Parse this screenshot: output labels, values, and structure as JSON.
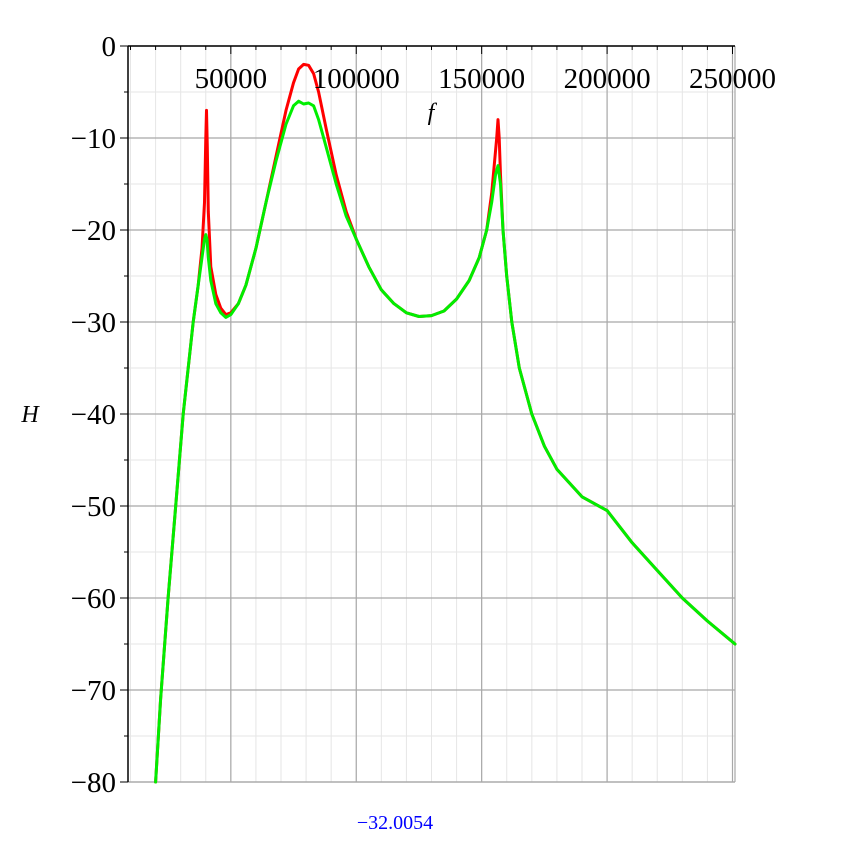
{
  "chart_data": {
    "type": "line",
    "xlabel": "f",
    "ylabel": "H",
    "xlim": [
      9000,
      251000
    ],
    "ylim": [
      -80,
      0
    ],
    "x_ticks": [
      50000,
      100000,
      150000,
      200000,
      250000
    ],
    "x_tick_labels": [
      "50000",
      "100000",
      "150000",
      "200000",
      "250000"
    ],
    "y_ticks": [
      0,
      -10,
      -20,
      -30,
      -40,
      -50,
      -60,
      -70,
      -80
    ],
    "y_tick_labels": [
      "0",
      "−10",
      "−20",
      "−30",
      "−40",
      "−50",
      "−60",
      "−70",
      "−80"
    ],
    "x_axis_position": "top",
    "grid": true,
    "legend": "none",
    "series": [
      {
        "color": "#ff0000",
        "points": [
          [
            20000,
            -80
          ],
          [
            22000,
            -71
          ],
          [
            25000,
            -60
          ],
          [
            28000,
            -50
          ],
          [
            31000,
            -40
          ],
          [
            33000,
            -35
          ],
          [
            35000,
            -30
          ],
          [
            37000,
            -26
          ],
          [
            38500,
            -22
          ],
          [
            39500,
            -17
          ],
          [
            40000,
            -10
          ],
          [
            40300,
            -7
          ],
          [
            40600,
            -11
          ],
          [
            41000,
            -18
          ],
          [
            42000,
            -24
          ],
          [
            44000,
            -27
          ],
          [
            46000,
            -28.5
          ],
          [
            48000,
            -29.2
          ],
          [
            50000,
            -29
          ],
          [
            53000,
            -28
          ],
          [
            56000,
            -26
          ],
          [
            60000,
            -22
          ],
          [
            64000,
            -17
          ],
          [
            68000,
            -12
          ],
          [
            72000,
            -7
          ],
          [
            75000,
            -4
          ],
          [
            77000,
            -2.5
          ],
          [
            79000,
            -2
          ],
          [
            81000,
            -2.1
          ],
          [
            83000,
            -3
          ],
          [
            85000,
            -5
          ],
          [
            88000,
            -9
          ],
          [
            92000,
            -14
          ],
          [
            96000,
            -18
          ],
          [
            100000,
            -21
          ],
          [
            105000,
            -24
          ],
          [
            110000,
            -26.5
          ],
          [
            115000,
            -28
          ],
          [
            120000,
            -29
          ],
          [
            125000,
            -29.4
          ],
          [
            130000,
            -29.3
          ],
          [
            135000,
            -28.8
          ],
          [
            140000,
            -27.5
          ],
          [
            145000,
            -25.5
          ],
          [
            149000,
            -23
          ],
          [
            152000,
            -20
          ],
          [
            154000,
            -16
          ],
          [
            155000,
            -13
          ],
          [
            156000,
            -10
          ],
          [
            156500,
            -8
          ],
          [
            157000,
            -10
          ],
          [
            157500,
            -14
          ],
          [
            158500,
            -20
          ],
          [
            160000,
            -25
          ],
          [
            162000,
            -30
          ],
          [
            165000,
            -35
          ],
          [
            170000,
            -40
          ],
          [
            175000,
            -43.5
          ],
          [
            180000,
            -46
          ],
          [
            190000,
            -49
          ],
          [
            200000,
            -50.5
          ],
          [
            210000,
            -54
          ],
          [
            220000,
            -57
          ],
          [
            230000,
            -60
          ],
          [
            240000,
            -62.5
          ],
          [
            251000,
            -65
          ]
        ]
      },
      {
        "color": "#00ee00",
        "points": [
          [
            20000,
            -80
          ],
          [
            22000,
            -71
          ],
          [
            25000,
            -60
          ],
          [
            28000,
            -50
          ],
          [
            31000,
            -40
          ],
          [
            33000,
            -35
          ],
          [
            35000,
            -30
          ],
          [
            37000,
            -26
          ],
          [
            38500,
            -23
          ],
          [
            39500,
            -21
          ],
          [
            40000,
            -20.5
          ],
          [
            40500,
            -21
          ],
          [
            41000,
            -23
          ],
          [
            42000,
            -25.5
          ],
          [
            44000,
            -28
          ],
          [
            46000,
            -29
          ],
          [
            48000,
            -29.5
          ],
          [
            50000,
            -29.2
          ],
          [
            53000,
            -28
          ],
          [
            56000,
            -26
          ],
          [
            60000,
            -22
          ],
          [
            64000,
            -17
          ],
          [
            68000,
            -12.5
          ],
          [
            72000,
            -8.5
          ],
          [
            75000,
            -6.5
          ],
          [
            77000,
            -6
          ],
          [
            79000,
            -6.3
          ],
          [
            81000,
            -6.2
          ],
          [
            83000,
            -6.5
          ],
          [
            85000,
            -8
          ],
          [
            88000,
            -11
          ],
          [
            92000,
            -15
          ],
          [
            96000,
            -18.5
          ],
          [
            100000,
            -21
          ],
          [
            105000,
            -24
          ],
          [
            110000,
            -26.5
          ],
          [
            115000,
            -28
          ],
          [
            120000,
            -29
          ],
          [
            125000,
            -29.4
          ],
          [
            130000,
            -29.3
          ],
          [
            135000,
            -28.8
          ],
          [
            140000,
            -27.5
          ],
          [
            145000,
            -25.5
          ],
          [
            149000,
            -23
          ],
          [
            152000,
            -20
          ],
          [
            154000,
            -17
          ],
          [
            155500,
            -14
          ],
          [
            156500,
            -13
          ],
          [
            157500,
            -15
          ],
          [
            158500,
            -20
          ],
          [
            160000,
            -25
          ],
          [
            162000,
            -30
          ],
          [
            165000,
            -35
          ],
          [
            170000,
            -40
          ],
          [
            175000,
            -43.5
          ],
          [
            180000,
            -46
          ],
          [
            190000,
            -49
          ],
          [
            200000,
            -50.5
          ],
          [
            210000,
            -54
          ],
          [
            220000,
            -57
          ],
          [
            230000,
            -60
          ],
          [
            240000,
            -62.5
          ],
          [
            251000,
            -65
          ]
        ]
      }
    ]
  },
  "readout_value": "−32.0054",
  "readout_color": "#0000ff"
}
